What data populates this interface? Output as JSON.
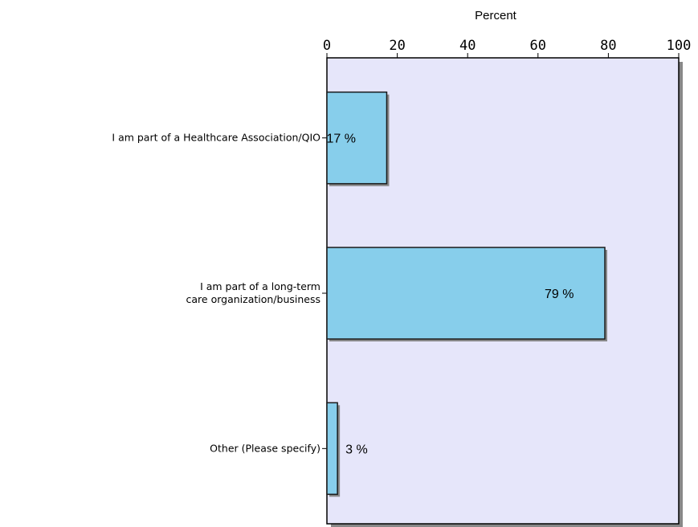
{
  "chart_data": {
    "type": "bar",
    "orientation": "horizontal",
    "xlabel": "Percent",
    "xlim": [
      0,
      100
    ],
    "xticks": [
      "0",
      "20",
      "40",
      "60",
      "80",
      "100"
    ],
    "categories": [
      [
        "I am part of a Healthcare Association/QIO"
      ],
      [
        "I am part of a long-term",
        "care organization/business"
      ],
      [
        "Other (Please specify)"
      ]
    ],
    "values": [
      17,
      79,
      3
    ],
    "data_labels": [
      "17 %",
      "79 %",
      "3 %"
    ],
    "grid": false,
    "legend": "none",
    "colors": {
      "plot_background": "#e6e6fa",
      "bar_fill": "#87ceeb",
      "bar_stroke": "#1a1a1a",
      "shadow": "#888888"
    }
  }
}
